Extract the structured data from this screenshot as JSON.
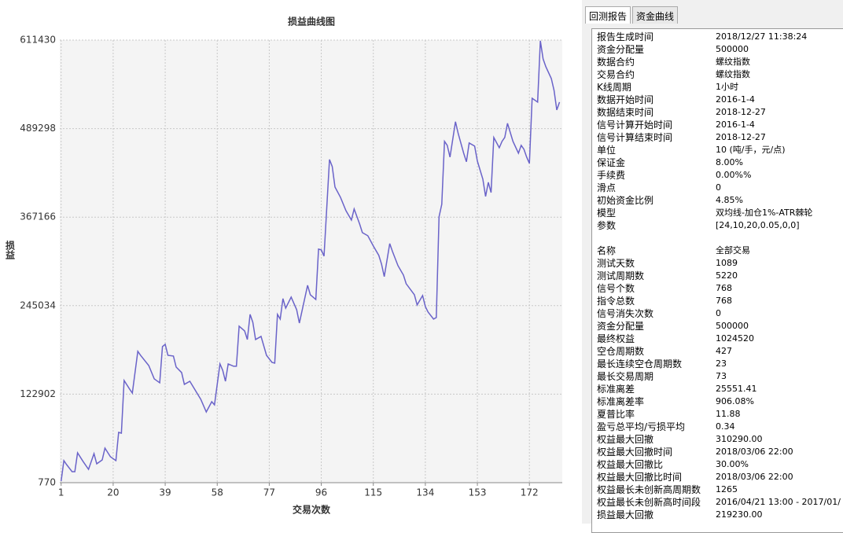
{
  "chart_data": {
    "type": "line",
    "title": "损益曲线图",
    "x_label": "交易次数",
    "y_label": "损益",
    "xlim": [
      0.5,
      184
    ],
    "xticks": [
      1,
      20,
      39,
      58,
      77,
      96,
      115,
      134,
      153,
      172
    ],
    "ylim": [
      770,
      611430
    ],
    "yticks": [
      770,
      122902,
      245034,
      367166,
      489298,
      611430
    ],
    "grid": true,
    "series": [
      {
        "color": "#6a63c9",
        "x": [
          1,
          2,
          3,
          5,
          6,
          7,
          9,
          11,
          13,
          14,
          16,
          17,
          19,
          21,
          22,
          23,
          24,
          26,
          27,
          29,
          30,
          33,
          35,
          37,
          38,
          39,
          40,
          42,
          43,
          45,
          46,
          48,
          52,
          54,
          56,
          57,
          59,
          60,
          61,
          62,
          64,
          65,
          66,
          68,
          69,
          70,
          71,
          72,
          73,
          74,
          76,
          78,
          79,
          80,
          81,
          82,
          83,
          85,
          87,
          88,
          91,
          92,
          94,
          95,
          96,
          97,
          99,
          100,
          101,
          103,
          105,
          107,
          108,
          110,
          111,
          113,
          115,
          117,
          118,
          119,
          121,
          122,
          124,
          126,
          127,
          130,
          131,
          133,
          134,
          135,
          137,
          138,
          139,
          140,
          141,
          142,
          143,
          145,
          146,
          148,
          149,
          150,
          152,
          153,
          155,
          156,
          157,
          158,
          159,
          161,
          162,
          163,
          164,
          166,
          168,
          169,
          170,
          171,
          172,
          173,
          175,
          176,
          177,
          178,
          180,
          181,
          182,
          183
        ],
        "values": [
          2900,
          31200,
          25700,
          16000,
          16000,
          42000,
          30100,
          19200,
          40900,
          26800,
          32200,
          48500,
          36600,
          31200,
          70200,
          69100,
          141800,
          129900,
          124500,
          182000,
          176500,
          162400,
          144000,
          138600,
          188500,
          191700,
          176500,
          175500,
          160300,
          152700,
          136400,
          140700,
          115800,
          98400,
          112500,
          108200,
          164600,
          155900,
          140700,
          164600,
          161400,
          161400,
          216700,
          210200,
          198300,
          233000,
          222100,
          198300,
          200400,
          202600,
          176500,
          166800,
          165700,
          233000,
          226500,
          254700,
          241600,
          256800,
          239500,
          221000,
          273100,
          260100,
          253600,
          323000,
          321900,
          313300,
          446700,
          437000,
          408700,
          394600,
          376200,
          363200,
          378400,
          357700,
          345800,
          341500,
          327400,
          314400,
          302400,
          285100,
          330600,
          319800,
          300300,
          287200,
          275300,
          260100,
          246000,
          259000,
          243800,
          236200,
          226500,
          228600,
          367500,
          384900,
          471700,
          466200,
          450000,
          498800,
          482500,
          455400,
          443500,
          469500,
          465200,
          444500,
          419600,
          395700,
          415200,
          401100,
          477100,
          462900,
          471700,
          477100,
          496600,
          471700,
          455400,
          466200,
          460800,
          450000,
          441300,
          531200,
          525900,
          610500,
          585500,
          574700,
          558400,
          542100,
          515000,
          525900
        ]
      }
    ]
  },
  "panel": {
    "tabs": [
      "回测报告",
      "资金曲线"
    ],
    "groups": [
      [
        [
          "报告生成时间",
          "2018/12/27 11:38:24"
        ],
        [
          "资金分配量",
          "500000"
        ],
        [
          "数据合约",
          "螺纹指数"
        ],
        [
          "交易合约",
          "螺纹指数"
        ],
        [
          "K线周期",
          "1小时"
        ],
        [
          "数据开始时间",
          "2016-1-4"
        ],
        [
          "数据结束时间",
          "2018-12-27"
        ],
        [
          "信号计算开始时间",
          "2016-1-4"
        ],
        [
          "信号计算结束时间",
          "2018-12-27"
        ],
        [
          "单位",
          "10 (吨/手，元/点)"
        ],
        [
          "保证金",
          "8.00%"
        ],
        [
          "手续费",
          "0.00%%"
        ],
        [
          "滑点",
          "0"
        ],
        [
          "初始资金比例",
          "4.85%"
        ],
        [
          "模型",
          "双均线-加仓1%-ATR棘轮"
        ],
        [
          "参数",
          "[24,10,20,0.05,0,0]"
        ]
      ],
      [
        [
          "名称",
          "全部交易"
        ],
        [
          "测试天数",
          "1089"
        ],
        [
          "测试周期数",
          "5220"
        ],
        [
          "信号个数",
          "768"
        ],
        [
          "指令总数",
          "768"
        ],
        [
          "信号消失次数",
          "0"
        ],
        [
          "资金分配量",
          "500000"
        ],
        [
          "最终权益",
          "1024520"
        ],
        [
          "空仓周期数",
          "427"
        ],
        [
          "最长连续空仓周期数",
          "23"
        ],
        [
          "最长交易周期",
          "73"
        ],
        [
          "标准离差",
          "25551.41"
        ],
        [
          "标准离差率",
          "906.08%"
        ],
        [
          "夏普比率",
          "11.88"
        ],
        [
          "盈亏总平均/亏损平均",
          "0.34"
        ],
        [
          "权益最大回撤",
          "310290.00"
        ],
        [
          "权益最大回撤时间",
          "2018/03/06 22:00"
        ],
        [
          "权益最大回撤比",
          "30.00%"
        ],
        [
          "权益最大回撤比时间",
          "2018/03/06 22:00"
        ],
        [
          "权益最长未创新高周期数",
          "1265"
        ],
        [
          "权益最长未创新高时间段",
          "2016/04/21 13:00 - 2017/01/"
        ],
        [
          "损益最大回撤",
          "219230.00"
        ]
      ]
    ]
  }
}
